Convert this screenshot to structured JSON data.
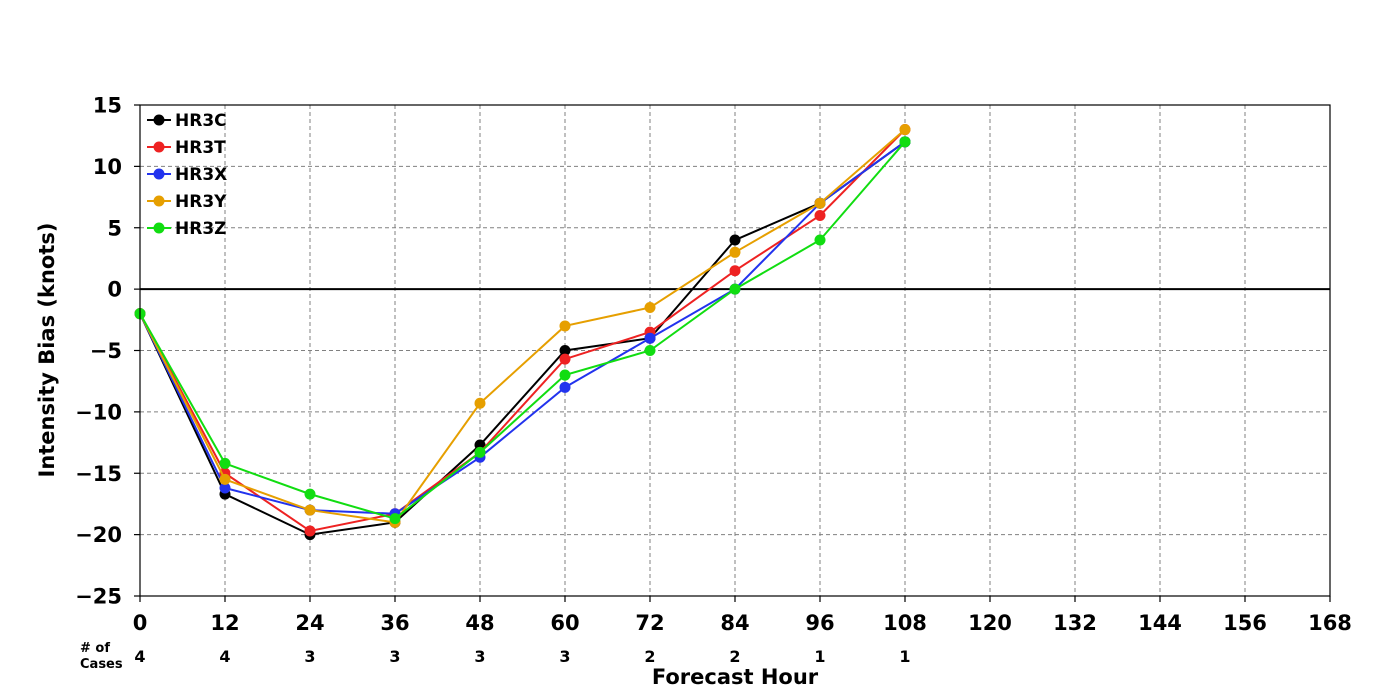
{
  "chart_data": {
    "type": "line",
    "xlabel": "Forecast Hour",
    "ylabel": "Intensity Bias (knots)",
    "xlim": [
      0,
      168
    ],
    "ylim": [
      -25,
      15
    ],
    "x_ticks": [
      0,
      12,
      24,
      36,
      48,
      60,
      72,
      84,
      96,
      108,
      120,
      132,
      144,
      156,
      168
    ],
    "x_tick_labels": [
      "0",
      "12",
      "24",
      "36",
      "48",
      "60",
      "72",
      "84",
      "96",
      "108",
      "120",
      "132",
      "144",
      "156",
      "168"
    ],
    "y_ticks": [
      15,
      10,
      5,
      0,
      -5,
      -10,
      -15,
      -20,
      -25
    ],
    "y_tick_labels": [
      "15",
      "10",
      "5",
      "0",
      "−5",
      "−10",
      "−15",
      "−20",
      "−25"
    ],
    "grid": true,
    "grid_style": "dashed",
    "zero_line": true,
    "legend_placement": "top-left",
    "cases_title_line1": "# of",
    "cases_title_line2": "Cases",
    "cases": [
      {
        "x": 0,
        "count": "4"
      },
      {
        "x": 12,
        "count": "4"
      },
      {
        "x": 24,
        "count": "3"
      },
      {
        "x": 36,
        "count": "3"
      },
      {
        "x": 48,
        "count": "3"
      },
      {
        "x": 60,
        "count": "3"
      },
      {
        "x": 72,
        "count": "2"
      },
      {
        "x": 84,
        "count": "2"
      },
      {
        "x": 96,
        "count": "1"
      },
      {
        "x": 108,
        "count": "1"
      }
    ],
    "x": [
      0,
      12,
      24,
      36,
      48,
      60,
      72,
      84,
      96,
      108
    ],
    "series": [
      {
        "name": "HR3C",
        "color": "#000000",
        "values": [
          -2,
          -16.7,
          -20,
          -19,
          -12.7,
          -5,
          -4,
          4,
          7,
          12
        ]
      },
      {
        "name": "HR3T",
        "color": "#ee2222",
        "values": [
          -2,
          -15,
          -19.7,
          -18.3,
          -13.3,
          -5.7,
          -3.5,
          1.5,
          6,
          13
        ]
      },
      {
        "name": "HR3X",
        "color": "#2233ee",
        "values": [
          -2,
          -16.2,
          -18,
          -18.3,
          -13.7,
          -8,
          -4,
          0,
          7,
          12
        ]
      },
      {
        "name": "HR3Y",
        "color": "#e69f00",
        "values": [
          -2,
          -15.5,
          -18,
          -19,
          -9.3,
          -3,
          -1.5,
          3,
          7,
          13
        ]
      },
      {
        "name": "HR3Z",
        "color": "#11dd11",
        "values": [
          -2,
          -14.2,
          -16.7,
          -18.7,
          -13.3,
          -7,
          -5,
          0,
          4,
          12
        ]
      }
    ]
  }
}
